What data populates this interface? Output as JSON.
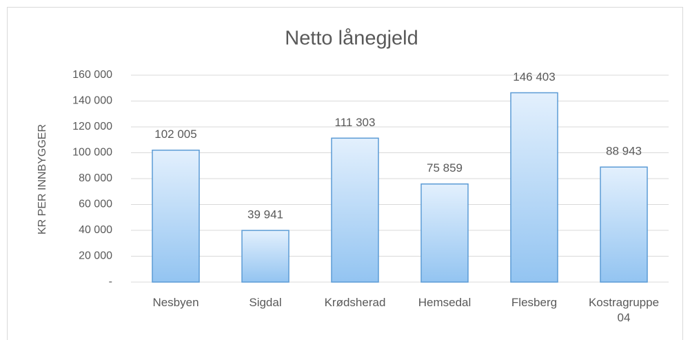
{
  "chart_data": {
    "type": "bar",
    "title": "Netto lånegjeld",
    "y_label": "KR PER INNBYGGER",
    "categories": [
      "Nesbyen",
      "Sigdal",
      "Krødsherad",
      "Hemsedal",
      "Flesberg",
      "Kostragruppe 04"
    ],
    "values": [
      102005,
      39941,
      111303,
      75859,
      146403,
      88943
    ],
    "value_labels": [
      "102 005",
      "39 941",
      "111 303",
      "75 859",
      "146 403",
      "88 943"
    ],
    "color": "#5b9bd5",
    "ylim": [
      0,
      160000
    ],
    "yticks": [
      {
        "value": 0,
        "label": "-"
      },
      {
        "value": 20000,
        "label": "20 000"
      },
      {
        "value": 40000,
        "label": "40 000"
      },
      {
        "value": 60000,
        "label": "60 000"
      },
      {
        "value": 80000,
        "label": "80 000"
      },
      {
        "value": 100000,
        "label": "100 000"
      },
      {
        "value": 120000,
        "label": "120 000"
      },
      {
        "value": 140000,
        "label": "140 000"
      },
      {
        "value": 160000,
        "label": "160 000"
      }
    ],
    "grid": true
  }
}
